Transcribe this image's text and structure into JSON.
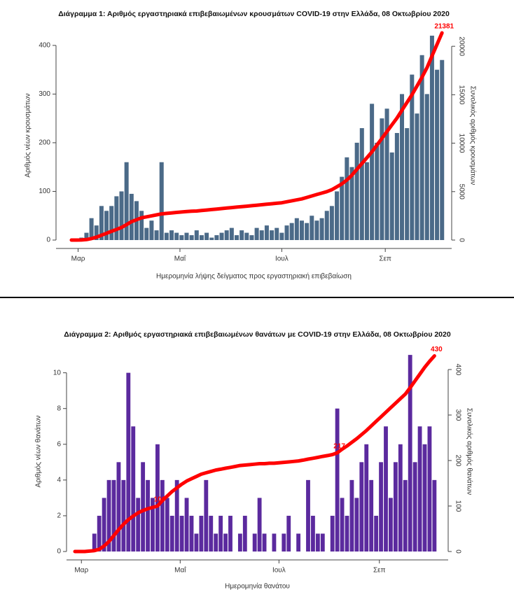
{
  "chart_data": [
    {
      "type": "bar",
      "title": "Διάγραμμα 1: Αριθμός εργαστηριακά επιβεβαιωμένων κρουσμάτων COVID-19 στην Ελλάδα, 08 Οκτωβρίου 2020",
      "x_label": "Ημερομηνία λήψης δείγματος προς εργαστηριακή επιβεβαίωση",
      "y_label": "Αριθμός νέων κρουσμάτων",
      "y2_label": "Συνολικός αριθμός κρουσμάτων",
      "x": [
        0,
        3,
        6,
        9,
        12,
        15,
        18,
        21,
        24,
        27,
        30,
        33,
        36,
        39,
        42,
        45,
        48,
        51,
        54,
        57,
        60,
        63,
        66,
        69,
        72,
        75,
        78,
        81,
        84,
        87,
        90,
        93,
        96,
        99,
        102,
        105,
        108,
        111,
        114,
        117,
        120,
        123,
        126,
        129,
        132,
        135,
        138,
        141,
        144,
        147,
        150,
        153,
        156,
        159,
        162,
        165,
        168,
        171,
        174,
        177,
        180,
        183,
        186,
        189,
        192,
        195,
        198,
        201,
        204,
        207,
        210,
        213,
        216,
        219,
        222
      ],
      "xlim": [
        0,
        224
      ],
      "xticks": [
        {
          "value": 4,
          "label": "Μαρ"
        },
        {
          "value": 65,
          "label": "Μαΐ"
        },
        {
          "value": 126,
          "label": "Ιουλ"
        },
        {
          "value": 188,
          "label": "Σεπ"
        }
      ],
      "ylim": [
        0,
        430
      ],
      "yticks": [
        0,
        100,
        200,
        300,
        400
      ],
      "y2lim": [
        0,
        21600
      ],
      "y2ticks": [
        0,
        5000,
        10000,
        15000,
        20000
      ],
      "series": [
        {
          "color": "#4b6a88",
          "values": [
            0,
            2,
            5,
            15,
            45,
            30,
            70,
            60,
            70,
            90,
            100,
            160,
            95,
            80,
            60,
            25,
            40,
            20,
            160,
            15,
            20,
            15,
            10,
            15,
            10,
            20,
            10,
            15,
            5,
            10,
            15,
            20,
            25,
            10,
            20,
            15,
            10,
            25,
            20,
            30,
            20,
            25,
            15,
            30,
            35,
            45,
            40,
            35,
            50,
            40,
            45,
            60,
            70,
            100,
            130,
            170,
            150,
            200,
            230,
            160,
            280,
            200,
            250,
            270,
            180,
            220,
            300,
            230,
            340,
            260,
            380,
            300,
            420,
            350,
            370
          ]
        },
        {
          "type": "line",
          "axis": "y2",
          "color": "#ff0000",
          "values": [
            0,
            3,
            10,
            50,
            150,
            300,
            500,
            700,
            900,
            1100,
            1300,
            1600,
            1900,
            2100,
            2300,
            2400,
            2500,
            2600,
            2700,
            2750,
            2800,
            2850,
            2900,
            2950,
            2980,
            3000,
            3050,
            3100,
            3150,
            3200,
            3250,
            3300,
            3350,
            3400,
            3450,
            3500,
            3550,
            3600,
            3650,
            3700,
            3750,
            3800,
            3850,
            3950,
            4050,
            4150,
            4250,
            4400,
            4550,
            4700,
            4850,
            5000,
            5200,
            5500,
            5800,
            6200,
            6700,
            7300,
            7900,
            8500,
            9100,
            9800,
            10500,
            11200,
            11900,
            12600,
            13400,
            14200,
            15000,
            15900,
            16800,
            17800,
            19000,
            20200,
            21381
          ]
        }
      ],
      "annotations": [
        {
          "value": 21381,
          "label": "21381",
          "x": 222
        }
      ]
    },
    {
      "type": "bar",
      "title": "Διάγραμμα 2: Αριθμός εργαστηριακά επιβεβαιωμένων θανάτων με COVID-19 στην Ελλάδα, 08 Οκτωβρίου 2020",
      "x_label": "Ημερομηνία θανάτου",
      "y_label": "Αριθμός νέων θανάτων",
      "y2_label": "Συνολικός αριθμός θανάτων",
      "x": [
        0,
        3,
        6,
        9,
        12,
        15,
        18,
        21,
        24,
        27,
        30,
        33,
        36,
        39,
        42,
        45,
        48,
        51,
        54,
        57,
        60,
        63,
        66,
        69,
        72,
        75,
        78,
        81,
        84,
        87,
        90,
        93,
        96,
        99,
        102,
        105,
        108,
        111,
        114,
        117,
        120,
        123,
        126,
        129,
        132,
        135,
        138,
        141,
        144,
        147,
        150,
        153,
        156,
        159,
        162,
        165,
        168,
        171,
        174,
        177,
        180,
        183,
        186,
        189,
        192,
        195,
        198,
        201,
        204,
        207,
        210,
        213,
        216,
        219,
        222
      ],
      "xlim": [
        0,
        224
      ],
      "xticks": [
        {
          "value": 4,
          "label": "Μαρ"
        },
        {
          "value": 65,
          "label": "Μαΐ"
        },
        {
          "value": 126,
          "label": "Ιουλ"
        },
        {
          "value": 188,
          "label": "Σεπ"
        }
      ],
      "ylim": [
        0,
        11.2
      ],
      "yticks": [
        0,
        2,
        4,
        6,
        8,
        10
      ],
      "y2lim": [
        0,
        440
      ],
      "y2ticks": [
        0,
        100,
        200,
        300,
        400
      ],
      "series": [
        {
          "color": "#5b2a9e",
          "values": [
            0,
            0,
            0,
            0,
            1,
            2,
            3,
            4,
            4,
            5,
            4,
            10,
            7,
            3,
            5,
            4,
            3,
            6,
            4,
            3,
            2,
            4,
            2,
            3,
            2,
            1,
            2,
            4,
            2,
            1,
            2,
            1,
            2,
            0,
            1,
            2,
            0,
            1,
            3,
            1,
            0,
            1,
            0,
            1,
            2,
            0,
            1,
            0,
            4,
            2,
            1,
            1,
            0,
            2,
            8,
            3,
            2,
            4,
            3,
            5,
            6,
            4,
            2,
            5,
            7,
            3,
            5,
            6,
            4,
            11,
            5,
            7,
            6,
            7,
            4
          ]
        },
        {
          "type": "line",
          "axis": "y2",
          "color": "#ff0000",
          "values": [
            0,
            0,
            0,
            1,
            2,
            5,
            12,
            22,
            35,
            48,
            60,
            70,
            78,
            85,
            90,
            94,
            97,
            100,
            112,
            122,
            132,
            140,
            148,
            155,
            160,
            165,
            170,
            173,
            176,
            179,
            181,
            183,
            185,
            187,
            189,
            190,
            191,
            192,
            193,
            193,
            194,
            194,
            195,
            196,
            197,
            198,
            199,
            201,
            203,
            205,
            207,
            209,
            211,
            213,
            217,
            225,
            232,
            240,
            248,
            257,
            266,
            276,
            286,
            296,
            306,
            316,
            326,
            336,
            346,
            360,
            375,
            390,
            405,
            418,
            430
          ]
        }
      ],
      "annotations": [
        {
          "value": 100,
          "label": "100",
          "x": 51
        },
        {
          "value": 217,
          "label": "217",
          "x": 162
        },
        {
          "value": 430,
          "label": "430",
          "x": 222
        }
      ]
    }
  ]
}
